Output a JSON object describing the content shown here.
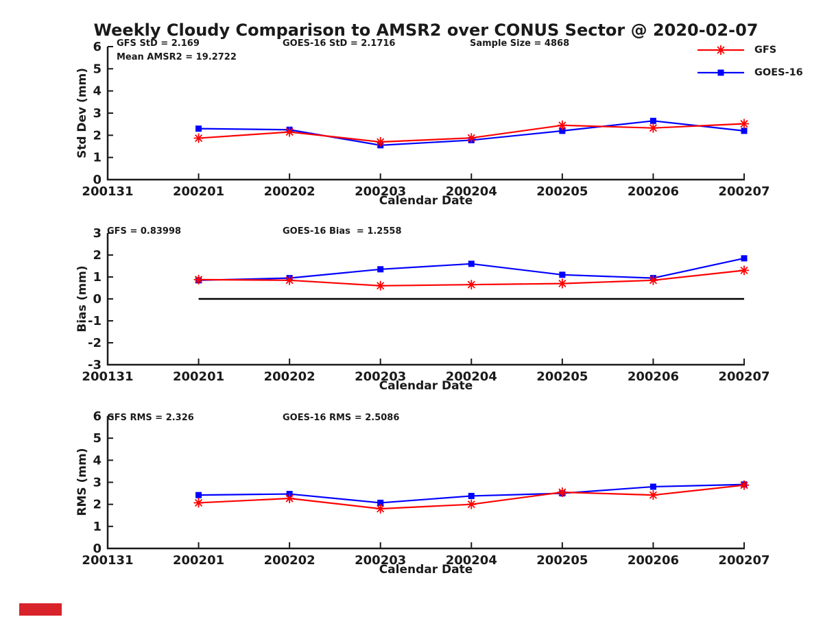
{
  "page": {
    "title": "Weekly Cloudy Comparison to AMSR2 over CONUS Sector @ 2020-02-07"
  },
  "style": {
    "axis_color": "#1a1a1a",
    "zero_line_color": "#000000",
    "gfs_color": "#ff0000",
    "goes_color": "#0000ff",
    "watermark_color": "#d8232a"
  },
  "legend": {
    "marker_names": [
      "asterisk-marker",
      "square-marker"
    ]
  },
  "chart_data": [
    {
      "type": "line",
      "panel": "std-dev",
      "ylabel": "Std Dev (mm)",
      "xlabel": "Calendar Date",
      "ylim": [
        0,
        6
      ],
      "yticks": [
        0,
        1,
        2,
        3,
        4,
        5,
        6
      ],
      "xticklabels": [
        "200131",
        "200201",
        "200202",
        "200203",
        "200204",
        "200205",
        "200206",
        "200207"
      ],
      "x": [
        "200201",
        "200202",
        "200203",
        "200204",
        "200205",
        "200206",
        "200207"
      ],
      "zero_line": false,
      "series": [
        {
          "name": "GFS",
          "color": "#ff0000",
          "marker": "asterisk",
          "values": [
            1.87,
            2.15,
            1.7,
            1.88,
            2.45,
            2.33,
            2.52
          ]
        },
        {
          "name": "GOES-16",
          "color": "#0000ff",
          "marker": "square",
          "values": [
            2.3,
            2.25,
            1.55,
            1.78,
            2.2,
            2.65,
            2.2
          ]
        }
      ],
      "annotations": [
        {
          "text": "GFS StD = 2.169"
        },
        {
          "text": "Mean AMSR2 = 19.2722"
        },
        {
          "text": "GOES-16 StD = 2.1716"
        },
        {
          "text": "Sample Size = 4868"
        }
      ]
    },
    {
      "type": "line",
      "panel": "bias",
      "ylabel": "Bias (mm)",
      "xlabel": "Calendar Date",
      "ylim": [
        -3,
        3
      ],
      "yticks": [
        3,
        2,
        1,
        0,
        -1,
        -2,
        -3
      ],
      "xticklabels": [
        "200131",
        "200201",
        "200202",
        "200203",
        "200204",
        "200205",
        "200206",
        "200207"
      ],
      "x": [
        "200201",
        "200202",
        "200203",
        "200204",
        "200205",
        "200206",
        "200207"
      ],
      "zero_line": true,
      "series": [
        {
          "name": "GFS",
          "color": "#ff0000",
          "marker": "asterisk",
          "values": [
            0.88,
            0.85,
            0.6,
            0.65,
            0.7,
            0.85,
            1.3
          ]
        },
        {
          "name": "GOES-16",
          "color": "#0000ff",
          "marker": "square",
          "values": [
            0.85,
            0.95,
            1.35,
            1.6,
            1.1,
            0.95,
            1.85
          ]
        }
      ],
      "annotations": [
        {
          "text": "GFS = 0.83998"
        },
        {
          "text": "GOES-16 Bias  = 1.2558"
        }
      ]
    },
    {
      "type": "line",
      "panel": "rms",
      "ylabel": "RMS (mm)",
      "xlabel": "Calendar Date",
      "ylim": [
        0,
        6
      ],
      "yticks": [
        0,
        1,
        2,
        3,
        4,
        5,
        6
      ],
      "xticklabels": [
        "200131",
        "200201",
        "200202",
        "200203",
        "200204",
        "200205",
        "200206",
        "200207"
      ],
      "x": [
        "200201",
        "200202",
        "200203",
        "200204",
        "200205",
        "200206",
        "200207"
      ],
      "zero_line": false,
      "series": [
        {
          "name": "GFS",
          "color": "#ff0000",
          "marker": "asterisk",
          "values": [
            2.07,
            2.27,
            1.8,
            2.0,
            2.55,
            2.42,
            2.87
          ]
        },
        {
          "name": "GOES-16",
          "color": "#0000ff",
          "marker": "square",
          "values": [
            2.42,
            2.47,
            2.07,
            2.38,
            2.5,
            2.8,
            2.9
          ]
        }
      ],
      "annotations": [
        {
          "text": "GFS RMS = 2.326"
        },
        {
          "text": "GOES-16 RMS = 2.5086"
        }
      ]
    }
  ]
}
